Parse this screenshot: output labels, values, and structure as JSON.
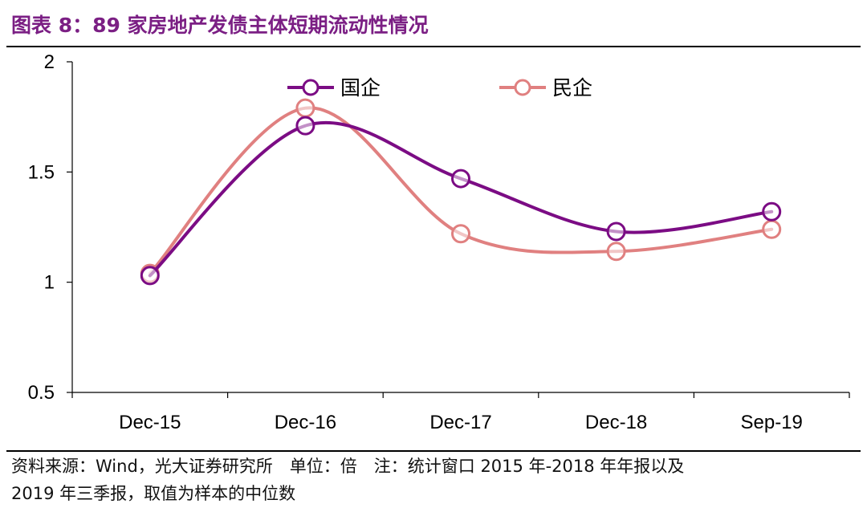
{
  "header": {
    "title": "图表 8：89 家房地产发债主体短期流动性情况"
  },
  "chart_data": {
    "type": "line",
    "title": "图表 8：89 家房地产发债主体短期流动性情况",
    "categories": [
      "Dec-15",
      "Dec-16",
      "Dec-17",
      "Dec-18",
      "Sep-19"
    ],
    "series": [
      {
        "name": "国企",
        "color": "#7B0C84",
        "values": [
          1.03,
          1.71,
          1.47,
          1.23,
          1.32
        ]
      },
      {
        "name": "民企",
        "color": "#E08080",
        "values": [
          1.04,
          1.79,
          1.22,
          1.14,
          1.24
        ]
      }
    ],
    "ylim": [
      0.5,
      2
    ],
    "yticks": [
      "0.5",
      "1",
      "1.5",
      "2"
    ],
    "ytick_values": [
      0.5,
      1,
      1.5,
      2
    ],
    "xlabel": "",
    "ylabel": "",
    "legend_position": "top",
    "grid": false,
    "smooth": true
  },
  "footer": {
    "source_line1": "资料来源：Wind，光大证券研究所　单位：倍　注：统计窗口 2015 年-2018 年年报以及",
    "source_line2": "2019 年三季报，取值为样本的中位数"
  }
}
